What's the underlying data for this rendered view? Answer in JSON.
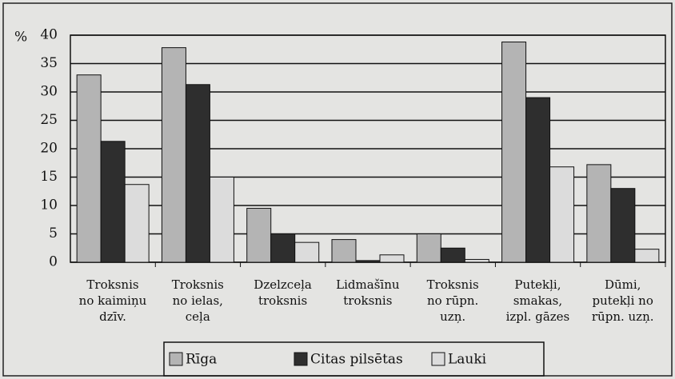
{
  "chart_data": {
    "type": "bar",
    "y_label": "%",
    "categories": [
      "Troksnis\nno kaimiņu\ndzīv.",
      "Troksnis\nno ielas,\nceļa",
      "Dzelzceļa\ntroksnis",
      "Lidmašīnu\ntroksnis",
      "Troksnis\nno rūpn.\nuzņ.",
      "Putekļi,\nsmakas,\nizpl. gāzes",
      "Dūmi,\nputekļi no\nrūpn. uzņ."
    ],
    "series": [
      {
        "name": "Rīga",
        "color": "#b4b4b4",
        "values": [
          33,
          37.8,
          9.5,
          4,
          5,
          38.8,
          17.2
        ]
      },
      {
        "name": "Citas pilsētas",
        "color": "#2e2e2e",
        "values": [
          21.3,
          31.3,
          5,
          0.3,
          2.5,
          29,
          13
        ]
      },
      {
        "name": "Lauki",
        "color": "#dcdcdc",
        "values": [
          13.7,
          15,
          3.5,
          1.3,
          0.5,
          16.8,
          2.3
        ]
      }
    ],
    "ylim": [
      0,
      40
    ],
    "yticks": [
      0,
      5,
      10,
      15,
      20,
      25,
      30,
      35,
      40
    ],
    "grid": true
  }
}
